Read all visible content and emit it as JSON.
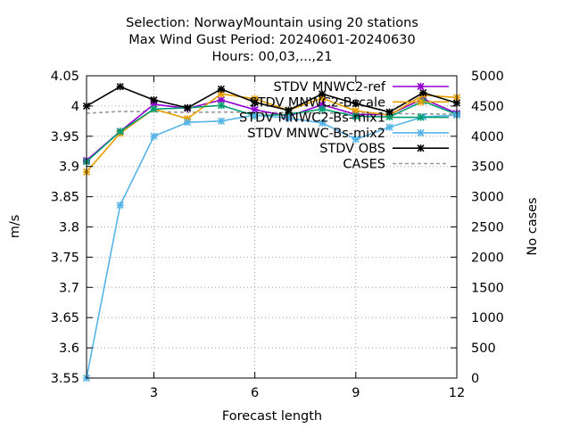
{
  "chart_data": {
    "type": "line",
    "title_lines": [
      "Selection: NorwayMountain using    20 stations",
      "Max Wind Gust   Period: 20240601-20240630",
      "Hours: 00,03,...,21"
    ],
    "xlabel": "Forecast length",
    "ylabel": "m/s",
    "y2label": "No cases",
    "xlim": [
      1,
      12
    ],
    "ylim": [
      3.55,
      4.05
    ],
    "y2lim": [
      0,
      5000
    ],
    "x_ticks": [
      3,
      6,
      9,
      12
    ],
    "y_ticks": [
      "3.55",
      "3.6",
      "3.65",
      "3.7",
      "3.75",
      "3.8",
      "3.85",
      "3.9",
      "3.95",
      "4",
      "4.05"
    ],
    "y2_ticks": [
      "0",
      "500",
      "1000",
      "1500",
      "2000",
      "2500",
      "3000",
      "3500",
      "4000",
      "4500",
      "5000"
    ],
    "x": [
      1,
      2,
      3,
      4,
      5,
      6,
      7,
      8,
      9,
      10,
      11,
      12
    ],
    "series": [
      {
        "name": "STDV MNWC2-ref",
        "color": "#9400d3",
        "marker": "x",
        "axis": "y1",
        "values": [
          3.91,
          3.958,
          4.003,
          3.996,
          4.01,
          3.994,
          3.983,
          4.002,
          3.986,
          3.986,
          4.012,
          3.988
        ]
      },
      {
        "name": "STDV MNWC2-Bscale",
        "color": "#e69f00",
        "marker": "x",
        "axis": "y1",
        "values": [
          3.891,
          3.955,
          3.995,
          3.979,
          4.02,
          4.012,
          3.993,
          4.013,
          3.992,
          3.985,
          4.018,
          4.014
        ]
      },
      {
        "name": "STDV MNWC2-Bs-mix1",
        "color": "#009e73",
        "marker": "x",
        "axis": "y1",
        "values": [
          3.908,
          3.958,
          3.995,
          3.997,
          4.001,
          3.984,
          3.986,
          3.995,
          3.983,
          3.982,
          4.008,
          3.986
        ]
      },
      {
        "name": "STDV MNWC-Bs-mix2",
        "color": "#56b4e9",
        "marker": "x",
        "axis": "y1",
        "values": [
          3.55,
          3.836,
          3.95,
          3.973,
          3.975,
          3.985,
          3.98,
          3.972,
          3.945,
          3.965,
          3.982,
          3.985
        ]
      },
      {
        "name": "STDV OBS",
        "color": "#000000",
        "marker": "x",
        "axis": "y1",
        "values": [
          4.0,
          4.032,
          4.01,
          3.997,
          4.028,
          4.006,
          3.993,
          4.02,
          4.004,
          3.99,
          4.022,
          4.005
        ]
      },
      {
        "name": "CASES",
        "color": "#999999",
        "marker": "none",
        "axis": "y2",
        "dashed": true,
        "values": [
          4380,
          4410,
          4405,
          4395,
          4400,
          4395,
          4390,
          4385,
          4380,
          4375,
          4370,
          4365
        ]
      }
    ],
    "legend_position": "top-right"
  }
}
